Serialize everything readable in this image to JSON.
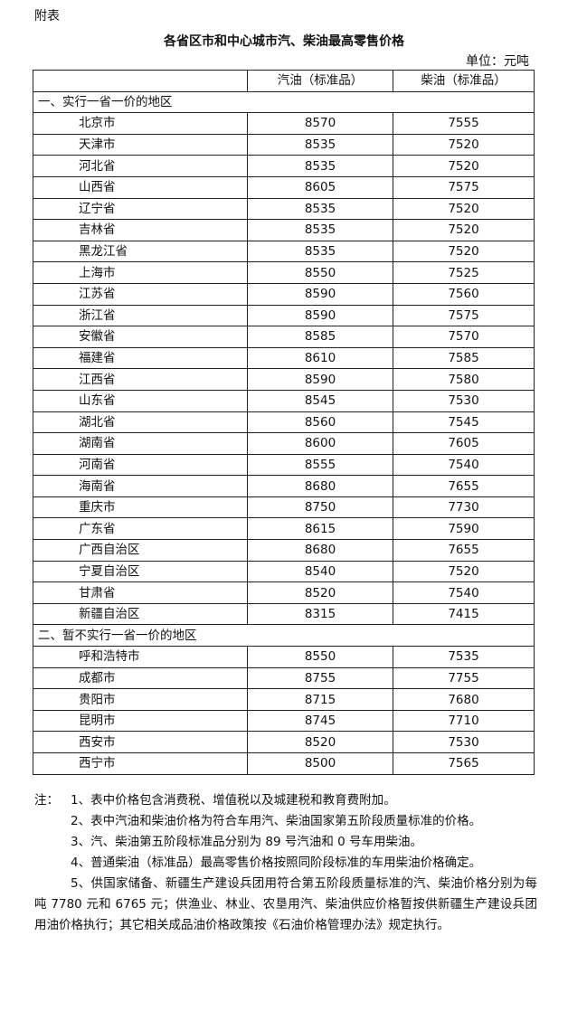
{
  "annex_label": "附表",
  "title": "各省区市和中心城市汽、柴油最高零售价格",
  "unit": "单位：元吨",
  "table": {
    "headers": [
      "",
      "汽油（标准品）",
      "柴油（标准品）"
    ],
    "sections": [
      {
        "label": "一、实行一省一价的地区",
        "rows": [
          [
            "北京市",
            "8570",
            "7555"
          ],
          [
            "天津市",
            "8535",
            "7520"
          ],
          [
            "河北省",
            "8535",
            "7520"
          ],
          [
            "山西省",
            "8605",
            "7575"
          ],
          [
            "辽宁省",
            "8535",
            "7520"
          ],
          [
            "吉林省",
            "8535",
            "7520"
          ],
          [
            "黑龙江省",
            "8535",
            "7520"
          ],
          [
            "上海市",
            "8550",
            "7525"
          ],
          [
            "江苏省",
            "8590",
            "7560"
          ],
          [
            "浙江省",
            "8590",
            "7575"
          ],
          [
            "安徽省",
            "8585",
            "7570"
          ],
          [
            "福建省",
            "8610",
            "7585"
          ],
          [
            "江西省",
            "8590",
            "7580"
          ],
          [
            "山东省",
            "8545",
            "7530"
          ],
          [
            "湖北省",
            "8560",
            "7545"
          ],
          [
            "湖南省",
            "8600",
            "7605"
          ],
          [
            "河南省",
            "8555",
            "7540"
          ],
          [
            "海南省",
            "8680",
            "7655"
          ],
          [
            "重庆市",
            "8750",
            "7730"
          ],
          [
            "广东省",
            "8615",
            "7590"
          ],
          [
            "广西自治区",
            "8680",
            "7655"
          ],
          [
            "宁夏自治区",
            "8540",
            "7520"
          ],
          [
            "甘肃省",
            "8520",
            "7540"
          ],
          [
            "新疆自治区",
            "8315",
            "7415"
          ]
        ]
      },
      {
        "label": "二、暂不实行一省一价的地区",
        "rows": [
          [
            "呼和浩特市",
            "8550",
            "7535"
          ],
          [
            "成都市",
            "8755",
            "7755"
          ],
          [
            "贵阳市",
            "8715",
            "7680"
          ],
          [
            "昆明市",
            "8745",
            "7710"
          ],
          [
            "西安市",
            "8520",
            "7530"
          ],
          [
            "西宁市",
            "8500",
            "7565"
          ]
        ]
      }
    ]
  },
  "notes": {
    "label": "注：",
    "items": [
      "1、表中价格包含消费税、增值税以及城建税和教育费附加。",
      "2、表中汽油和柴油价格为符合车用汽、柴油国家第五阶段质量标准的价格。",
      "3、汽、柴油第五阶段标准品分别为 89 号汽油和 0 号车用柴油。",
      "4、普通柴油（标准品）最高零售价格按照同阶段标准的车用柴油价格确定。",
      "5、供国家储备、新疆生产建设兵团用符合第五阶段质量标准的汽、柴油价格分别为每吨 7780 元和 6765 元；供渔业、林业、农垦用汽、柴油供应价格暂按供新疆生产建设兵团用油价格执行；其它相关成品油价格政策按《石油价格管理办法》规定执行。"
    ]
  }
}
